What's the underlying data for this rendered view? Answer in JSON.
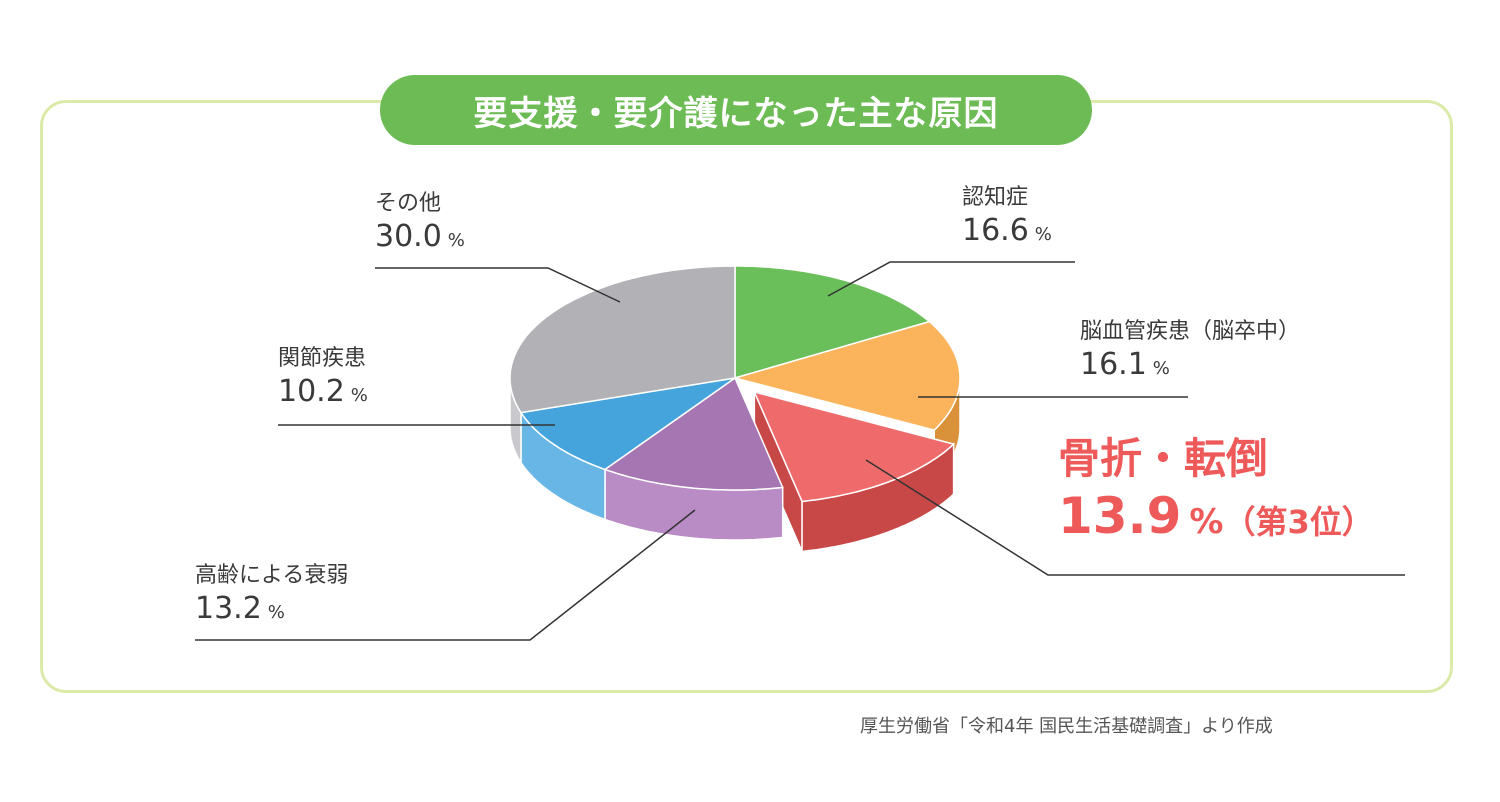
{
  "title": "要支援・要介護になった主な原因",
  "source": "厚生労働省「令和4年 国民生活基礎調査」より作成",
  "chart_data": {
    "type": "pie",
    "title": "要支援・要介護になった主な原因",
    "unit": "%",
    "slices": [
      {
        "label": "認知症",
        "value": 16.6,
        "display": "16.6",
        "color": "#6abf5b",
        "side": "#4f9a42"
      },
      {
        "label": "脳血管疾患（脳卒中）",
        "value": 16.1,
        "display": "16.1",
        "color": "#fbb45c",
        "side": "#d9913a"
      },
      {
        "label": "骨折・転倒",
        "value": 13.9,
        "display": "13.9",
        "color": "#ef6b6b",
        "side": "#c84747",
        "exploded": true,
        "rank": "（第3位）"
      },
      {
        "label": "高齢による衰弱",
        "value": 13.2,
        "display": "13.2",
        "color": "#a676b3",
        "side": "#b98cc6"
      },
      {
        "label": "関節疾患",
        "value": 10.2,
        "display": "10.2",
        "color": "#46a4dc",
        "side": "#67b6e6"
      },
      {
        "label": "その他",
        "value": 30.0,
        "display": "30.0",
        "color": "#b1b1b6",
        "side": "#c9c9cd"
      }
    ]
  }
}
